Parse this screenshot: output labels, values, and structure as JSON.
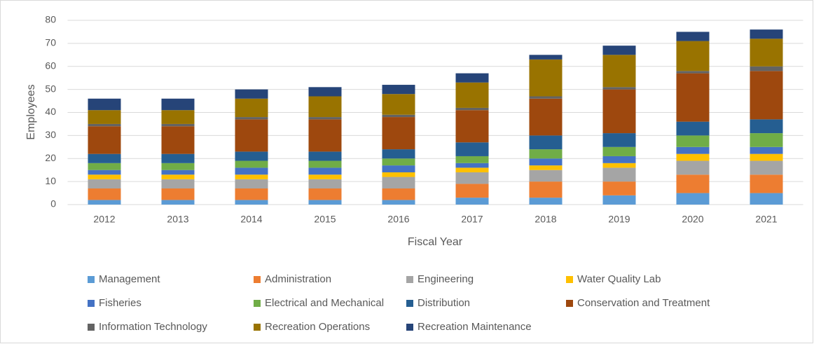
{
  "chart_data": {
    "type": "stacked_bar",
    "x_label": "Fiscal Year",
    "y_label": "Employees",
    "categories": [
      "2012",
      "2013",
      "2014",
      "2015",
      "2016",
      "2017",
      "2018",
      "2019",
      "2020",
      "2021"
    ],
    "series": [
      {
        "name": "Management",
        "color": "#5b9bd5",
        "values": [
          2,
          2,
          2,
          2,
          2,
          3,
          3,
          4,
          5,
          5
        ]
      },
      {
        "name": "Administration",
        "color": "#ed7d31",
        "values": [
          5,
          5,
          5,
          5,
          5,
          6,
          7,
          6,
          8,
          8
        ]
      },
      {
        "name": "Engineering",
        "color": "#a5a5a5",
        "values": [
          4,
          4,
          4,
          4,
          5,
          5,
          5,
          6,
          6,
          6
        ]
      },
      {
        "name": "Water Quality Lab",
        "color": "#ffc000",
        "values": [
          2,
          2,
          2,
          2,
          2,
          2,
          2,
          2,
          3,
          3
        ]
      },
      {
        "name": "Fisheries",
        "color": "#4472c4",
        "values": [
          2,
          2,
          3,
          3,
          3,
          2,
          3,
          3,
          3,
          3
        ]
      },
      {
        "name": "Electrical and Mechanical",
        "color": "#70ad47",
        "values": [
          3,
          3,
          3,
          3,
          3,
          3,
          4,
          4,
          5,
          6
        ]
      },
      {
        "name": "Distribution",
        "color": "#255e91",
        "values": [
          4,
          4,
          4,
          4,
          4,
          6,
          6,
          6,
          6,
          6
        ]
      },
      {
        "name": "Conservation and Treatment",
        "color": "#9e480e",
        "values": [
          12,
          12,
          14,
          14,
          14,
          14,
          16,
          19,
          21,
          21
        ]
      },
      {
        "name": "Information Technology",
        "color": "#636363",
        "values": [
          1,
          1,
          1,
          1,
          1,
          1,
          1,
          1,
          1,
          2
        ]
      },
      {
        "name": "Recreation Operations",
        "color": "#997300",
        "values": [
          6,
          6,
          8,
          9,
          9,
          11,
          16,
          14,
          13,
          12
        ]
      },
      {
        "name": "Recreation Maintenance",
        "color": "#264478",
        "values": [
          5,
          5,
          4,
          4,
          4,
          4,
          2,
          4,
          4,
          4
        ]
      }
    ],
    "ylim": [
      0,
      80
    ],
    "yticks": [
      0,
      10,
      20,
      30,
      40,
      50,
      60,
      70,
      80
    ],
    "grid": true,
    "legend": "bottom"
  }
}
